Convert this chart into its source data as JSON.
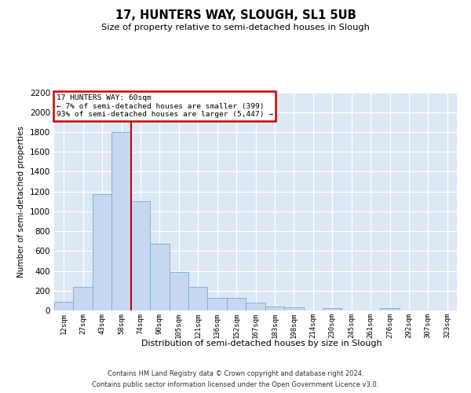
{
  "title": "17, HUNTERS WAY, SLOUGH, SL1 5UB",
  "subtitle": "Size of property relative to semi-detached houses in Slough",
  "xlabel": "Distribution of semi-detached houses by size in Slough",
  "ylabel": "Number of semi-detached properties",
  "categories": [
    "12sqm",
    "27sqm",
    "43sqm",
    "58sqm",
    "74sqm",
    "90sqm",
    "105sqm",
    "121sqm",
    "136sqm",
    "152sqm",
    "167sqm",
    "183sqm",
    "198sqm",
    "214sqm",
    "230sqm",
    "245sqm",
    "261sqm",
    "276sqm",
    "292sqm",
    "307sqm",
    "323sqm"
  ],
  "values": [
    90,
    240,
    1170,
    1800,
    1100,
    670,
    390,
    240,
    130,
    130,
    80,
    40,
    30,
    0,
    20,
    0,
    0,
    20,
    0,
    0,
    0
  ],
  "bar_color": "#c5d8ef",
  "bar_edge_color": "#7aabcf",
  "property_line_x": 3.5,
  "annotation_line1": "17 HUNTERS WAY: 60sqm",
  "annotation_line2": "← 7% of semi-detached houses are smaller (399)",
  "annotation_line3": "93% of semi-detached houses are larger (5,447) →",
  "annotation_box_color": "#ffffff",
  "annotation_box_edge_color": "#cc0000",
  "red_line_color": "#cc0000",
  "ylim_max": 2200,
  "yticks": [
    0,
    200,
    400,
    600,
    800,
    1000,
    1200,
    1400,
    1600,
    1800,
    2000,
    2200
  ],
  "footer1": "Contains HM Land Registry data © Crown copyright and database right 2024.",
  "footer2": "Contains public sector information licensed under the Open Government Licence v3.0.",
  "bg_color": "#dde8f5"
}
